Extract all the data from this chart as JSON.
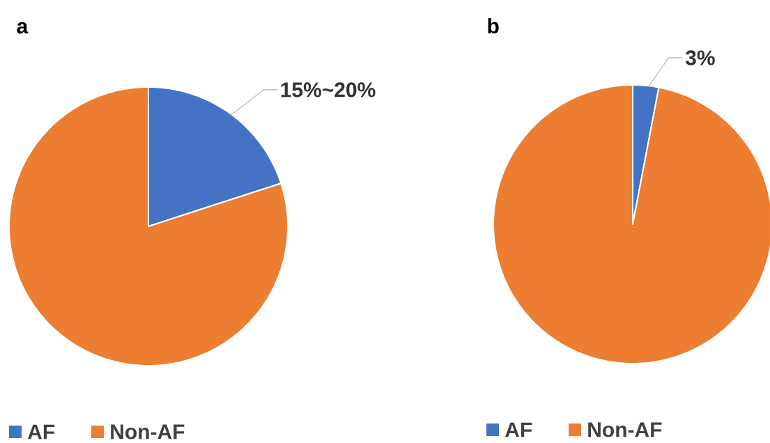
{
  "chart_data": [
    {
      "type": "pie",
      "title": "a",
      "categories": [
        "AF",
        "Non-AF"
      ],
      "values": [
        20,
        80
      ],
      "colors": [
        "#4472c4",
        "#ed7d31"
      ],
      "value_labels": [
        "15%~20%",
        null
      ],
      "legend": "bottom"
    },
    {
      "type": "pie",
      "title": "b",
      "categories": [
        "AF",
        "Non-AF"
      ],
      "values": [
        3,
        97
      ],
      "colors": [
        "#4472c4",
        "#ed7d31"
      ],
      "value_labels": [
        "3%",
        null
      ],
      "legend": "bottom"
    }
  ]
}
